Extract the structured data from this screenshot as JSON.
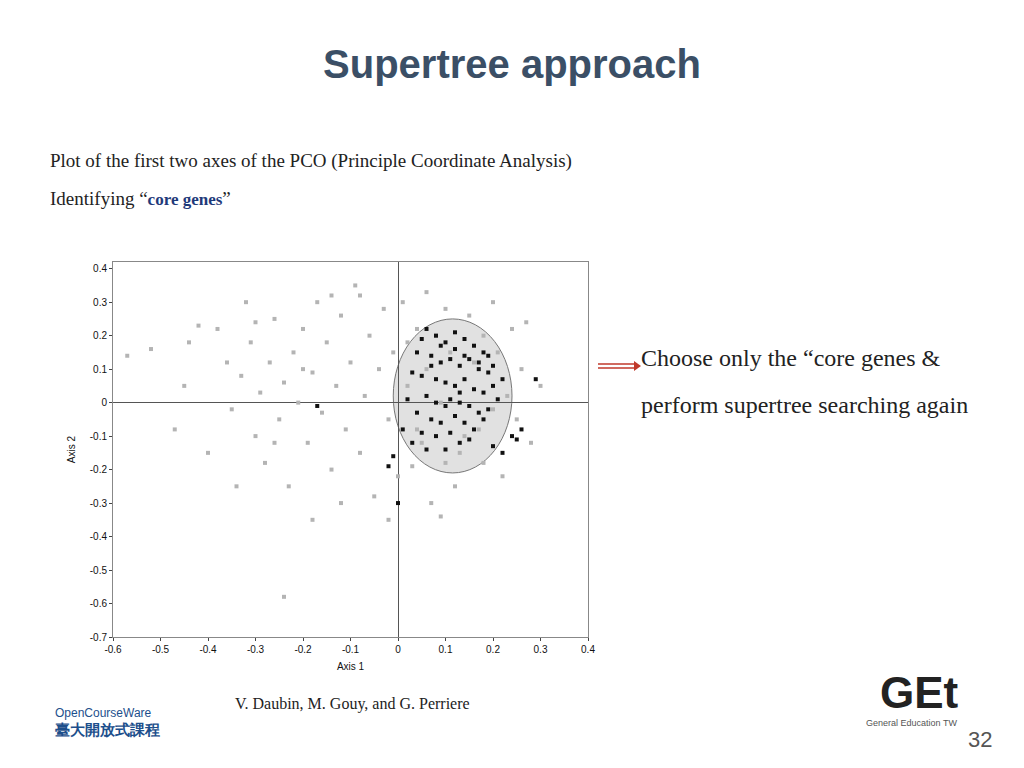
{
  "slide": {
    "title": "Supertree approach",
    "line1": "Plot of the first two axes of the PCO (Principle Coordinate Analysis)",
    "line2": {
      "prefix": "Identifying “",
      "emphasis": "core genes",
      "suffix": "”"
    },
    "note": "Choose only the “core genes & perform supertree searching again",
    "credit": "V. Daubin, M. Gouy, and G. Perriere",
    "page": "32",
    "logo_left": [
      "OpenCourseWare",
      "臺大開放式課程"
    ],
    "logo_right": [
      "GEt",
      "General Education TW"
    ]
  },
  "chart_data": {
    "type": "scatter",
    "xlabel": "Axis 1",
    "ylabel": "Axis 2",
    "xlim": [
      -0.6,
      0.4
    ],
    "ylim": [
      -0.7,
      0.42
    ],
    "xticks": [
      -0.6,
      -0.5,
      -0.4,
      -0.3,
      -0.2,
      -0.1,
      0,
      0.1,
      0.2,
      0.3,
      0.4
    ],
    "yticks": [
      -0.7,
      -0.6,
      -0.5,
      -0.4,
      -0.3,
      -0.2,
      -0.1,
      0,
      0.1,
      0.2,
      0.3,
      0.4
    ],
    "grid": false,
    "marker": "square",
    "ellipse": {
      "x0": -0.01,
      "x1": 0.24,
      "y0": -0.21,
      "y1": 0.25
    },
    "series": [
      {
        "color": "#b4b4b4",
        "x": [
          -0.57,
          -0.52,
          -0.45,
          -0.42,
          -0.38,
          -0.36,
          -0.35,
          -0.33,
          -0.31,
          -0.3,
          -0.29,
          -0.28,
          -0.27,
          -0.26,
          -0.25,
          -0.24,
          -0.23,
          -0.22,
          -0.21,
          -0.2,
          -0.19,
          -0.18,
          -0.17,
          -0.16,
          -0.15,
          -0.14,
          -0.13,
          -0.12,
          -0.11,
          -0.1,
          -0.09,
          -0.08,
          -0.07,
          -0.06,
          -0.05,
          -0.04,
          -0.03,
          -0.02,
          -0.01,
          0.0,
          0.01,
          0.02,
          0.03,
          0.04,
          0.05,
          0.06,
          0.07,
          0.09,
          0.1,
          0.12,
          0.15,
          0.18,
          0.2,
          0.22,
          0.24,
          0.25,
          0.26,
          0.27,
          0.28,
          0.3,
          -0.24,
          -0.47,
          -0.4,
          -0.44,
          -0.34,
          -0.32,
          -0.3,
          -0.12,
          -0.18,
          -0.08,
          -0.14,
          -0.2,
          -0.26,
          0.08,
          0.12,
          0.14,
          0.16,
          0.04,
          0.06,
          0.1,
          0.18,
          0.2,
          0.02,
          -0.02,
          0.13,
          0.11,
          0.17,
          0.21,
          0.23,
          0.09
        ],
        "y": [
          0.14,
          0.16,
          0.05,
          0.23,
          0.22,
          0.12,
          -0.02,
          0.08,
          0.18,
          -0.1,
          0.03,
          -0.18,
          0.12,
          0.25,
          -0.05,
          0.06,
          -0.25,
          0.15,
          0.0,
          0.22,
          -0.12,
          0.09,
          0.3,
          -0.03,
          0.18,
          -0.2,
          0.05,
          0.26,
          -0.08,
          0.12,
          0.35,
          -0.15,
          0.02,
          0.2,
          -0.28,
          0.1,
          0.28,
          -0.05,
          0.15,
          -0.22,
          0.3,
          0.05,
          -0.19,
          0.22,
          -0.12,
          0.33,
          -0.3,
          -0.34,
          0.28,
          -0.25,
          0.26,
          -0.18,
          0.3,
          -0.22,
          0.22,
          -0.05,
          0.1,
          0.24,
          -0.12,
          0.05,
          -0.58,
          -0.08,
          -0.15,
          0.18,
          -0.25,
          0.3,
          0.24,
          -0.3,
          -0.35,
          0.32,
          0.32,
          0.1,
          -0.12,
          0.2,
          0.05,
          -0.1,
          0.12,
          -0.08,
          0.1,
          -0.18,
          0.2,
          -0.02,
          0.18,
          -0.35,
          -0.15,
          0.15,
          -0.08,
          0.15,
          0.02,
          0.0
        ]
      },
      {
        "color": "#111111",
        "x": [
          0.06,
          0.08,
          0.1,
          0.12,
          0.14,
          0.16,
          0.18,
          0.04,
          0.07,
          0.09,
          0.11,
          0.13,
          0.15,
          0.17,
          0.19,
          0.2,
          0.03,
          0.05,
          0.08,
          0.1,
          0.12,
          0.14,
          0.16,
          0.18,
          0.21,
          0.06,
          0.08,
          0.1,
          0.11,
          0.13,
          0.15,
          0.17,
          0.19,
          0.04,
          0.07,
          0.09,
          0.12,
          0.14,
          0.16,
          0.18,
          0.05,
          0.08,
          0.11,
          0.13,
          0.15,
          0.1,
          0.06,
          0.12,
          0.09,
          0.14,
          0.2,
          0.22,
          0.02,
          0.01,
          -0.17,
          0.0,
          -0.01,
          -0.02,
          0.29,
          0.24,
          0.25,
          0.22,
          0.26,
          0.2,
          0.07,
          0.13,
          0.17,
          0.03,
          0.19,
          0.05
        ],
        "y": [
          0.22,
          0.2,
          0.18,
          0.21,
          0.19,
          0.17,
          0.15,
          0.15,
          0.14,
          0.12,
          0.13,
          0.11,
          0.13,
          0.1,
          0.09,
          0.05,
          0.09,
          0.08,
          0.07,
          0.06,
          0.05,
          0.07,
          0.04,
          0.03,
          0.01,
          0.02,
          0.0,
          -0.01,
          0.01,
          0.0,
          -0.01,
          -0.03,
          -0.02,
          -0.03,
          -0.05,
          -0.06,
          -0.04,
          -0.06,
          -0.08,
          -0.05,
          -0.09,
          -0.1,
          -0.09,
          -0.12,
          -0.11,
          -0.14,
          -0.14,
          0.16,
          0.17,
          0.14,
          0.11,
          0.07,
          0.01,
          -0.08,
          -0.01,
          -0.3,
          -0.16,
          -0.19,
          0.07,
          -0.1,
          -0.11,
          -0.15,
          -0.08,
          -0.13,
          0.11,
          0.03,
          0.12,
          -0.12,
          0.14,
          0.19
        ]
      }
    ]
  }
}
